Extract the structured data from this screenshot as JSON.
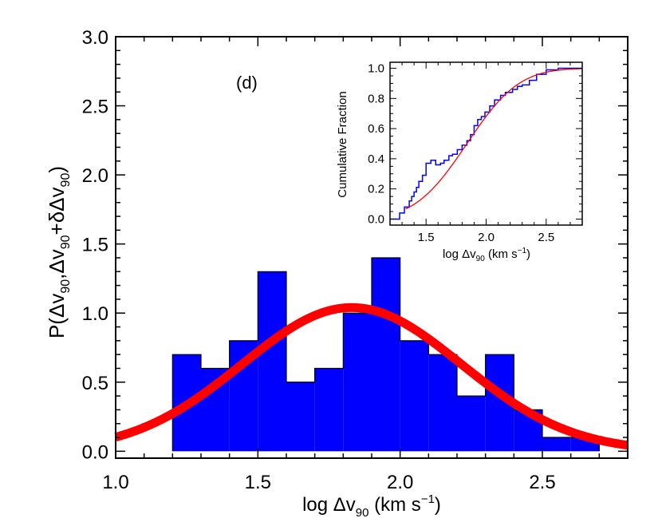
{
  "chart_data": [
    {
      "id": "main",
      "type": "bar",
      "panel_label": "(d)",
      "xlabel_parts": {
        "prefix": "log Δv",
        "sub": "90",
        "suffix": " (km s",
        "sup": "−1",
        "close": ")"
      },
      "ylabel_parts": {
        "prefix": "P(Δv",
        "sub1": "90",
        "mid1": ",Δv",
        "sub2": "90",
        "mid2": "+δΔv",
        "sub3": "90",
        "close": ")"
      },
      "xlim": [
        1.0,
        2.8
      ],
      "ylim": [
        -0.05,
        3.0
      ],
      "xticks": [
        1.0,
        1.5,
        2.0,
        2.5
      ],
      "xtick_labels": [
        "1.0",
        "1.5",
        "2.0",
        "2.5"
      ],
      "yticks": [
        0.0,
        0.5,
        1.0,
        1.5,
        2.0,
        2.5,
        3.0
      ],
      "ytick_labels": [
        "0.0",
        "0.5",
        "1.0",
        "1.5",
        "2.0",
        "2.5",
        "3.0"
      ],
      "bin_edges": [
        1.2,
        1.3,
        1.4,
        1.5,
        1.6,
        1.7,
        1.8,
        1.9,
        2.0,
        2.1,
        2.2,
        2.3,
        2.4,
        2.5,
        2.6,
        2.7
      ],
      "values": [
        0.7,
        0.6,
        0.8,
        1.3,
        0.5,
        0.6,
        1.0,
        1.4,
        0.8,
        0.7,
        0.4,
        0.7,
        0.3,
        0.1,
        0.1
      ],
      "bar_color": "#0000ff",
      "fit": {
        "type": "gaussian",
        "mean": 1.83,
        "sigma": 0.385,
        "amplitude": 1.04,
        "color": "#ff0000"
      }
    },
    {
      "id": "inset",
      "type": "line",
      "xlim": [
        1.2,
        2.8
      ],
      "ylim": [
        -0.04,
        1.04
      ],
      "xticks": [
        1.5,
        2.0,
        2.5
      ],
      "xtick_labels": [
        "1.5",
        "2.0",
        "2.5"
      ],
      "yticks": [
        0.0,
        0.2,
        0.4,
        0.6,
        0.8,
        1.0
      ],
      "ytick_labels": [
        "0.0",
        "0.2",
        "0.4",
        "0.6",
        "0.8",
        "1.0"
      ],
      "ylabel": "Cumulative Fraction",
      "xlabel_parts": {
        "prefix": "log Δv",
        "sub": "90",
        "suffix": " (km s",
        "sup": "−1",
        "close": ")"
      },
      "series": [
        {
          "name": "empirical",
          "color": "#0000ff",
          "step": true,
          "x": [
            1.2,
            1.28,
            1.32,
            1.36,
            1.38,
            1.4,
            1.42,
            1.44,
            1.47,
            1.5,
            1.54,
            1.58,
            1.62,
            1.65,
            1.69,
            1.72,
            1.76,
            1.8,
            1.84,
            1.87,
            1.9,
            1.93,
            1.96,
            1.99,
            2.03,
            2.07,
            2.12,
            2.16,
            2.22,
            2.26,
            2.3,
            2.36,
            2.42,
            2.5,
            2.6,
            2.7,
            2.8
          ],
          "values": [
            0.0,
            0.04,
            0.08,
            0.12,
            0.15,
            0.18,
            0.21,
            0.25,
            0.29,
            0.37,
            0.39,
            0.36,
            0.37,
            0.39,
            0.42,
            0.43,
            0.46,
            0.49,
            0.52,
            0.56,
            0.62,
            0.66,
            0.68,
            0.71,
            0.75,
            0.79,
            0.82,
            0.84,
            0.86,
            0.88,
            0.89,
            0.92,
            0.96,
            0.99,
            1.0,
            1.0,
            1.0
          ]
        },
        {
          "name": "gaussian-cdf",
          "color": "#ff0000",
          "cdf": {
            "mean": 1.84,
            "sigma": 0.34
          }
        }
      ]
    }
  ]
}
